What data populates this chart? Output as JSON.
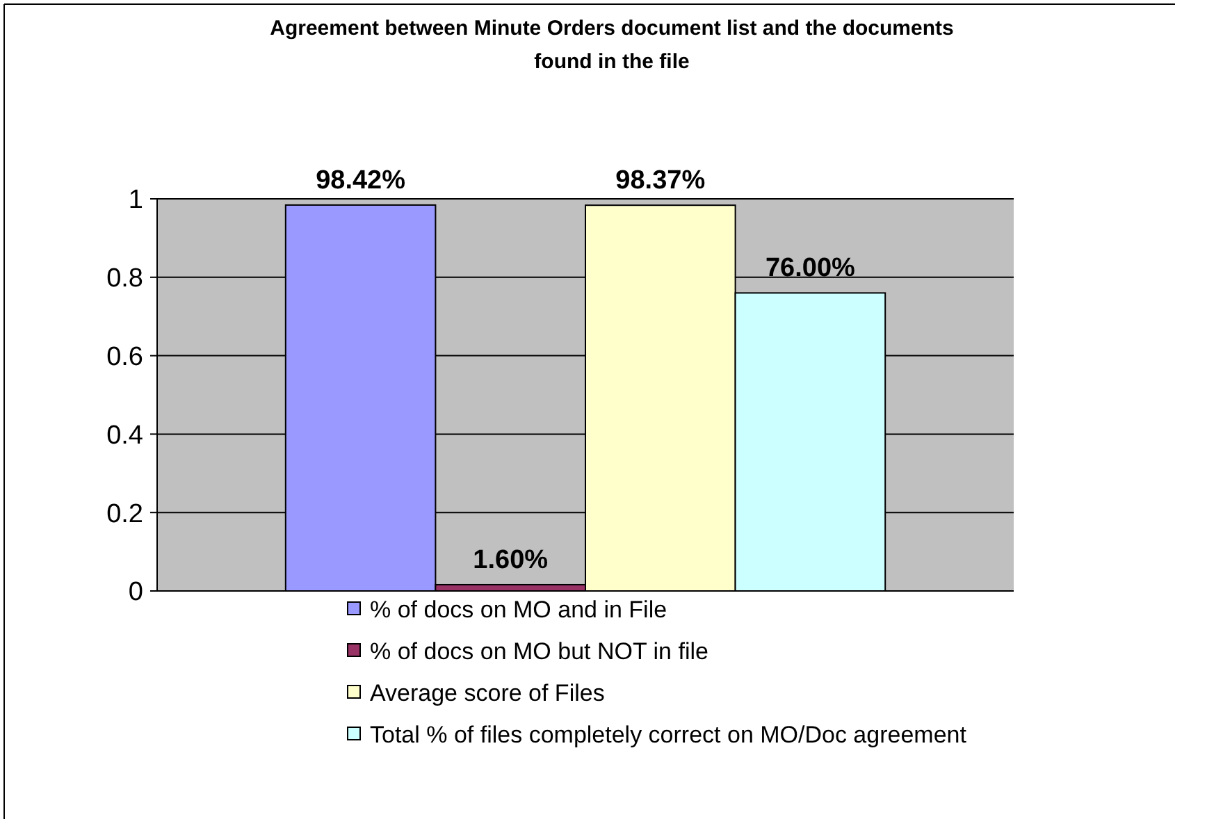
{
  "chart_data": {
    "type": "bar",
    "title": "Agreement between Minute Orders document list and the documents found  in the file",
    "categories": [
      null
    ],
    "series": [
      {
        "name": "% of docs on MO and in File",
        "color": "#9999ff",
        "values": [
          0.9842
        ],
        "value_labels": [
          "98.42%"
        ]
      },
      {
        "name": "% of docs on MO but NOT in file",
        "color": "#993366",
        "values": [
          0.016
        ],
        "value_labels": [
          "1.60%"
        ]
      },
      {
        "name": "Average score of Files",
        "color": "#ffffcc",
        "values": [
          0.9837
        ],
        "value_labels": [
          "98.37%"
        ]
      },
      {
        "name": "Total % of files completely correct on MO/Doc agreement",
        "color": "#ccffff",
        "values": [
          0.76
        ],
        "value_labels": [
          "76.00%"
        ]
      }
    ],
    "ylim": [
      0,
      1
    ],
    "yticks": [
      0,
      0.2,
      0.4,
      0.6,
      0.8,
      1
    ],
    "grid": "y",
    "legend": "bottom"
  }
}
